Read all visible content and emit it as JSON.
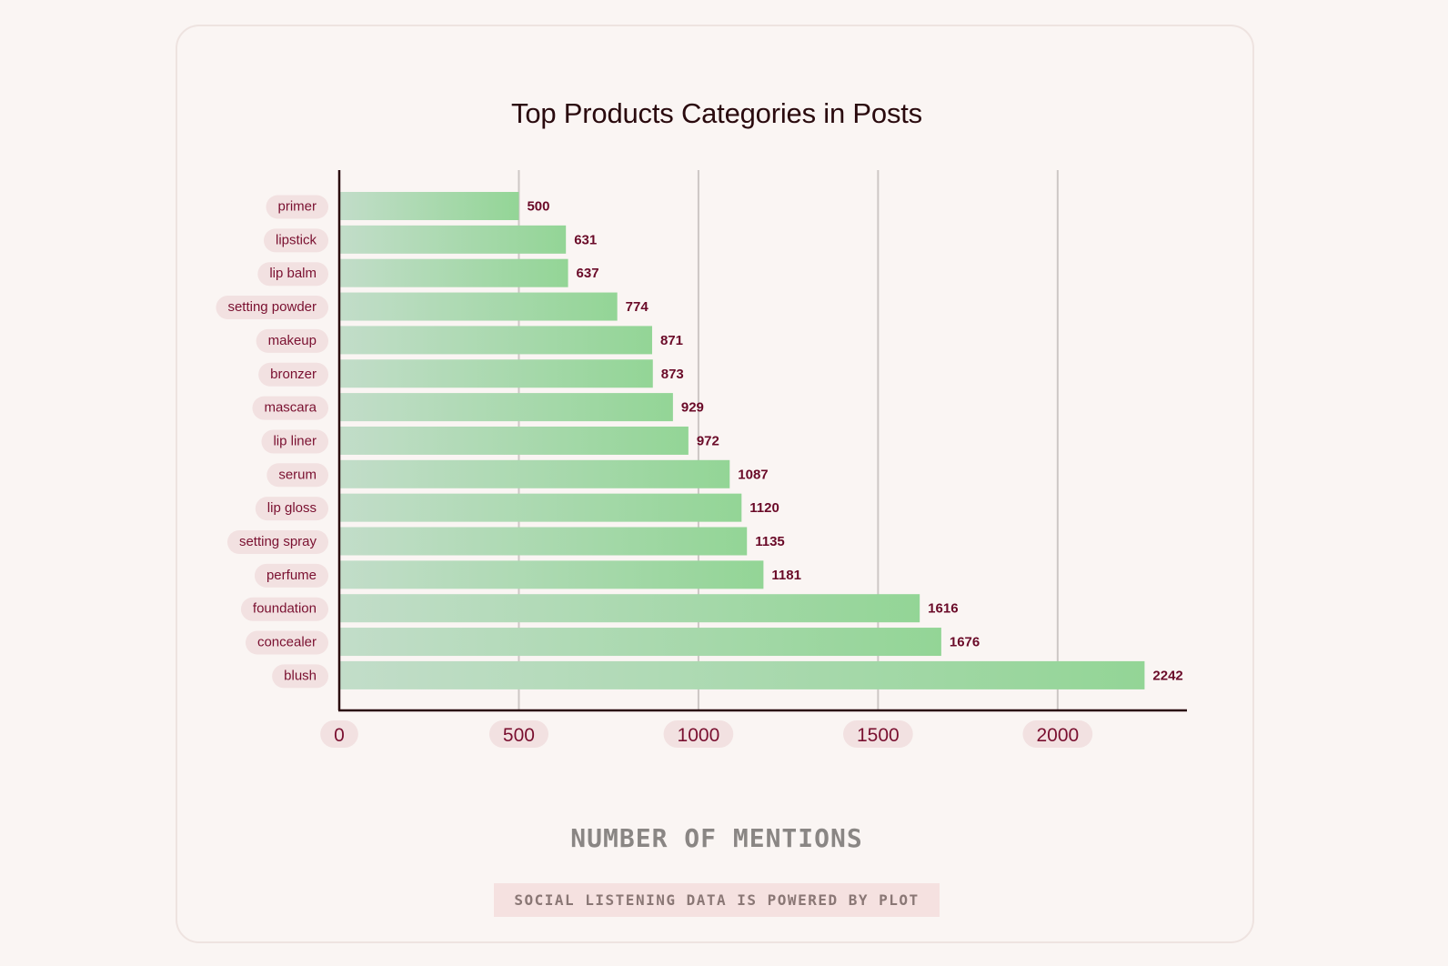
{
  "page": {
    "title": "Top Products Categories in Posts",
    "footer": "SOCIAL LISTENING DATA IS POWERED BY PLOT"
  },
  "colors": {
    "bar_start": "#c2ddc9",
    "bar_end": "#93d596",
    "pill": "#f2e1e1",
    "label": "#7a1030",
    "grid": "#cdc7c5",
    "axis": "#2a0a0e"
  },
  "chart_data": {
    "type": "bar",
    "orientation": "horizontal",
    "title": "Top Products Categories in Posts",
    "xlabel": "NUMBER OF MENTIONS",
    "ylabel": "",
    "categories": [
      "primer",
      "lipstick",
      "lip balm",
      "setting powder",
      "makeup",
      "bronzer",
      "mascara",
      "lip liner",
      "serum",
      "lip gloss",
      "setting spray",
      "perfume",
      "foundation",
      "concealer",
      "blush"
    ],
    "values": [
      500,
      631,
      637,
      774,
      871,
      873,
      929,
      972,
      1087,
      1120,
      1135,
      1181,
      1616,
      1676,
      2242
    ],
    "xlim": [
      0,
      2360
    ],
    "xticks": [
      0,
      500,
      1000,
      1500,
      2000
    ],
    "grid": true
  }
}
